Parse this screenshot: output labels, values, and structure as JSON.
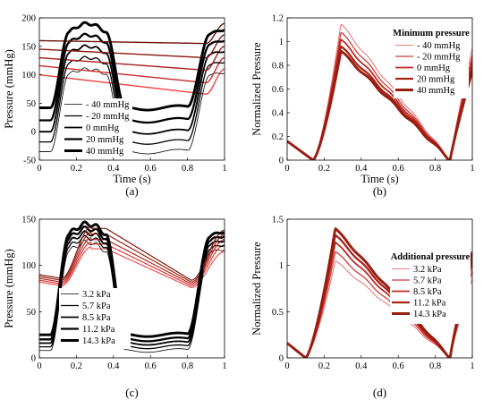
{
  "chart_data": [
    {
      "type": "line",
      "panel_label": "(a)",
      "xlabel": "Time (s)",
      "ylabel": "Pressure (mmHg)",
      "xlim": [
        0,
        1
      ],
      "ylim": [
        -50,
        200
      ],
      "xticks": [
        0,
        0.2,
        0.4,
        0.6,
        0.8,
        1
      ],
      "xtick_labels": [
        "0",
        "0.2",
        "0.4",
        "0.6",
        "0.8",
        "1"
      ],
      "yticks": [
        -50,
        0,
        50,
        100,
        150,
        200
      ],
      "ytick_labels": [
        "-50",
        "0",
        "50",
        "100",
        "150",
        "200"
      ],
      "grid": false,
      "legend_placement": "center-left",
      "legend_title": "",
      "series_colors": [
        "#000000",
        "#000000",
        "#000000",
        "#000000",
        "#000000"
      ],
      "series_widths": [
        0.8,
        1.3,
        1.8,
        2.3,
        2.9
      ],
      "reference_colors": [
        "#f04040",
        "#cc2a2a",
        "#a81e1e",
        "#8a1a12",
        "#6e1408"
      ],
      "series": [
        {
          "name": "- 40 mmHg",
          "min": -35,
          "max": 110,
          "ref_start": 100,
          "ref_end": 66
        },
        {
          "name": "- 20 mmHg",
          "min": -18,
          "max": 130,
          "ref_start": 116,
          "ref_end": 86
        },
        {
          "name": "0 mmHg",
          "min": 0,
          "max": 150,
          "ref_start": 130,
          "ref_end": 108
        },
        {
          "name": "20 mmHg",
          "min": 20,
          "max": 170,
          "ref_start": 145,
          "ref_end": 130
        },
        {
          "name": "40 mmHg",
          "min": 42,
          "max": 190,
          "ref_start": 160,
          "ref_end": 155
        }
      ]
    },
    {
      "type": "line",
      "panel_label": "(b)",
      "xlabel": "Time (s)",
      "ylabel": "Normalized Pressure",
      "xlim": [
        0,
        1
      ],
      "ylim": [
        0,
        1.2
      ],
      "xticks": [
        0,
        0.2,
        0.4,
        0.6,
        0.8,
        1
      ],
      "xtick_labels": [
        "0",
        "0.2",
        "0.4",
        "0.6",
        "0.8",
        "1"
      ],
      "yticks": [
        0,
        0.2,
        0.4,
        0.6,
        0.8,
        1,
        1.2
      ],
      "ytick_labels": [
        "0",
        "0.2",
        "0.4",
        "0.6",
        "0.8",
        "1",
        "1.2"
      ],
      "grid": false,
      "legend_placement": "top-right",
      "legend_title": "Minimum pressure",
      "series_colors": [
        "#e85050",
        "#d23a3a",
        "#bb2a22",
        "#a82418",
        "#981c10"
      ],
      "series_widths": [
        0.8,
        1.3,
        1.8,
        2.3,
        2.9
      ],
      "series": [
        {
          "name": "- 40 mmHg",
          "peak": 1.15
        },
        {
          "name": "- 20 mmHg",
          "peak": 1.08
        },
        {
          "name": "0 mmHg",
          "peak": 1.02
        },
        {
          "name": "20 mmHg",
          "peak": 0.96
        },
        {
          "name": "40 mmHg",
          "peak": 0.92
        }
      ]
    },
    {
      "type": "line",
      "panel_label": "(c)",
      "xlabel": "",
      "ylabel": "Pressure (mmHg)",
      "xlim": [
        0,
        1
      ],
      "ylim": [
        0,
        150
      ],
      "xticks": [
        0,
        0.2,
        0.4,
        0.6,
        0.8,
        1
      ],
      "xtick_labels": [
        "0",
        "0.2",
        "0.4",
        "0.6",
        "0.8",
        "1"
      ],
      "yticks": [
        0,
        50,
        100,
        150
      ],
      "ytick_labels": [
        "0",
        "50",
        "100",
        "150"
      ],
      "grid": false,
      "legend_placement": "bottom-left",
      "legend_title": "",
      "series_colors": [
        "#000000",
        "#000000",
        "#000000",
        "#000000",
        "#000000"
      ],
      "series_widths": [
        0.8,
        1.3,
        1.8,
        2.3,
        2.9
      ],
      "reference_colors": [
        "#f05050",
        "#d83a3a",
        "#b82a22",
        "#9c2418",
        "#80180c"
      ],
      "series": [
        {
          "name": "3.2 kPa",
          "min": 8,
          "max": 125,
          "ref_start": 82,
          "ref_end": 115,
          "ref_max": 120
        },
        {
          "name": "5.7 kPa",
          "min": 12,
          "max": 130,
          "ref_start": 84,
          "ref_end": 122,
          "ref_max": 125
        },
        {
          "name": "8.5 kPa",
          "min": 16,
          "max": 135,
          "ref_start": 86,
          "ref_end": 128,
          "ref_max": 130
        },
        {
          "name": "11.2 kPa",
          "min": 20,
          "max": 140,
          "ref_start": 88,
          "ref_end": 133,
          "ref_max": 136
        },
        {
          "name": "14.3 kPa",
          "min": 25,
          "max": 145,
          "ref_start": 90,
          "ref_end": 138,
          "ref_max": 142
        }
      ]
    },
    {
      "type": "line",
      "panel_label": "(d)",
      "xlabel": "",
      "ylabel": "Normalized Pressure",
      "xlim": [
        0,
        1
      ],
      "ylim": [
        0,
        1.5
      ],
      "xticks": [
        0,
        0.2,
        0.4,
        0.6,
        0.8,
        1
      ],
      "xtick_labels": [
        "0",
        "0.2",
        "0.4",
        "0.6",
        "0.8",
        "1"
      ],
      "yticks": [
        0,
        0.5,
        1,
        1.5
      ],
      "ytick_labels": [
        "0",
        "0.5",
        "1",
        "1.5"
      ],
      "grid": false,
      "legend_placement": "center-right",
      "legend_title": "Additional pressure",
      "series_colors": [
        "#e85050",
        "#d23a3a",
        "#bb2a22",
        "#a82418",
        "#981c10"
      ],
      "series_widths": [
        0.8,
        1.3,
        1.8,
        2.3,
        2.9
      ],
      "series": [
        {
          "name": "3.2 kPa",
          "peak": 1.05
        },
        {
          "name": "5.7 kPa",
          "peak": 1.15
        },
        {
          "name": "8.5 kPa",
          "peak": 1.25
        },
        {
          "name": "11.2 kPa",
          "peak": 1.33
        },
        {
          "name": "14.3 kPa",
          "peak": 1.4
        }
      ]
    }
  ]
}
